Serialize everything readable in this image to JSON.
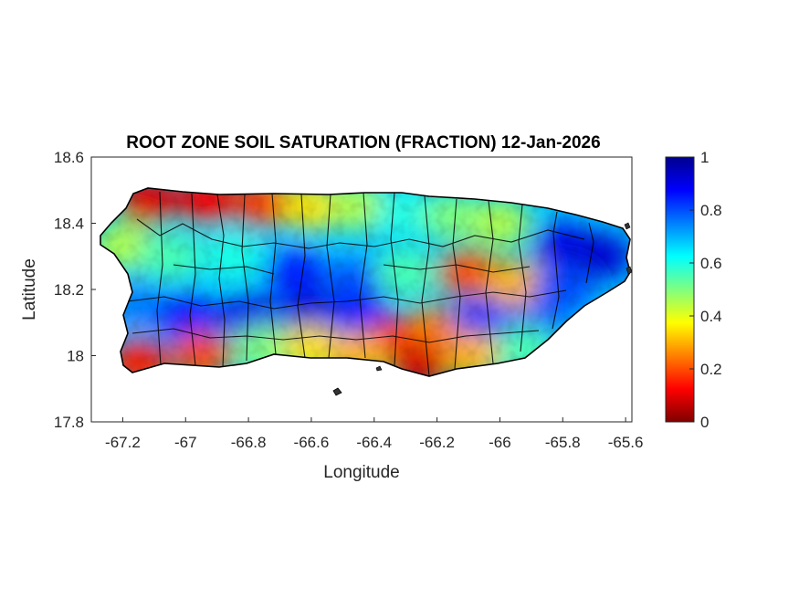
{
  "chart_data": {
    "type": "heatmap",
    "title": "ROOT ZONE SOIL SATURATION (FRACTION) 12-Jan-2026",
    "xlabel": "Longitude",
    "ylabel": "Latitude",
    "xlim": [
      -67.3,
      -65.58
    ],
    "ylim": [
      17.8,
      18.6
    ],
    "x_ticks": [
      "-67.2",
      "-67",
      "-66.8",
      "-66.6",
      "-66.4",
      "-66.2",
      "-66",
      "-65.8",
      "-65.6"
    ],
    "y_ticks": [
      "18.6",
      "18.4",
      "18.2",
      "18",
      "17.8"
    ],
    "colorbar": {
      "colormap": "jet-reversed",
      "range": [
        0,
        1
      ],
      "ticks": [
        "1",
        "0.8",
        "0.6",
        "0.4",
        "0.2",
        "0"
      ]
    },
    "region": "Puerto Rico (municipality boundaries)",
    "zones": [
      {
        "lon": -67.12,
        "lat": 18.47,
        "value": 0.1
      },
      {
        "lon": -66.93,
        "lat": 18.47,
        "value": 0.12
      },
      {
        "lon": -66.75,
        "lat": 18.46,
        "value": 0.18
      },
      {
        "lon": -66.6,
        "lat": 18.45,
        "value": 0.35
      },
      {
        "lon": -66.45,
        "lat": 18.45,
        "value": 0.45
      },
      {
        "lon": -66.3,
        "lat": 18.43,
        "value": 0.6
      },
      {
        "lon": -66.15,
        "lat": 18.42,
        "value": 0.5
      },
      {
        "lon": -66.0,
        "lat": 18.4,
        "value": 0.45
      },
      {
        "lon": -65.8,
        "lat": 18.33,
        "value": 0.9
      },
      {
        "lon": -65.68,
        "lat": 18.3,
        "value": 0.92
      },
      {
        "lon": -67.2,
        "lat": 18.33,
        "value": 0.45
      },
      {
        "lon": -67.05,
        "lat": 18.3,
        "value": 0.55
      },
      {
        "lon": -66.85,
        "lat": 18.3,
        "value": 0.6
      },
      {
        "lon": -66.65,
        "lat": 18.25,
        "value": 0.85
      },
      {
        "lon": -66.45,
        "lat": 18.22,
        "value": 0.8
      },
      {
        "lon": -66.3,
        "lat": 18.25,
        "value": 0.55
      },
      {
        "lon": -66.1,
        "lat": 18.25,
        "value": 0.2
      },
      {
        "lon": -65.95,
        "lat": 18.22,
        "value": 0.3
      },
      {
        "lon": -65.8,
        "lat": 18.2,
        "value": 0.8
      },
      {
        "lon": -67.15,
        "lat": 18.15,
        "value": 0.75
      },
      {
        "lon": -67.0,
        "lat": 18.12,
        "value": 0.85
      },
      {
        "lon": -66.8,
        "lat": 18.12,
        "value": 0.9
      },
      {
        "lon": -66.6,
        "lat": 18.12,
        "value": 0.92
      },
      {
        "lon": -66.45,
        "lat": 18.12,
        "value": 0.85
      },
      {
        "lon": -66.32,
        "lat": 18.05,
        "value": 0.12
      },
      {
        "lon": -66.2,
        "lat": 18.08,
        "value": 0.25
      },
      {
        "lon": -66.05,
        "lat": 18.1,
        "value": 0.85
      },
      {
        "lon": -65.9,
        "lat": 18.08,
        "value": 0.8
      },
      {
        "lon": -67.15,
        "lat": 17.98,
        "value": 0.15
      },
      {
        "lon": -66.95,
        "lat": 18.0,
        "value": 0.2
      },
      {
        "lon": -66.75,
        "lat": 18.02,
        "value": 0.5
      },
      {
        "lon": -66.6,
        "lat": 18.02,
        "value": 0.35
      },
      {
        "lon": -66.45,
        "lat": 18.0,
        "value": 0.3
      },
      {
        "lon": -66.25,
        "lat": 17.97,
        "value": 0.08
      },
      {
        "lon": -66.08,
        "lat": 18.0,
        "value": 0.3
      },
      {
        "lon": -65.92,
        "lat": 18.02,
        "value": 0.55
      }
    ]
  }
}
